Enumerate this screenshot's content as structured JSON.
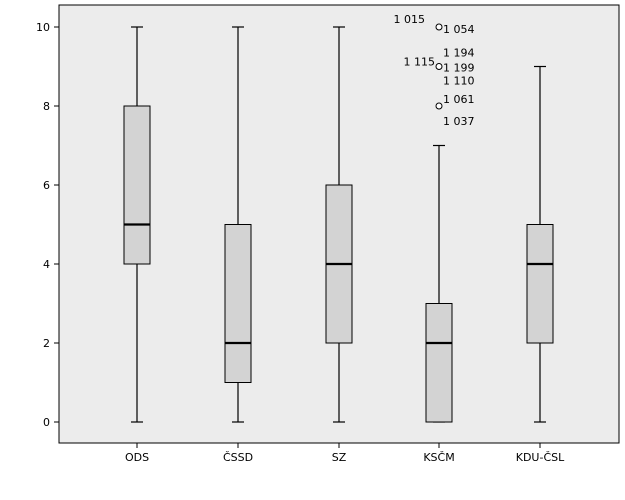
{
  "chart_data": {
    "type": "boxplot",
    "categories": [
      "ODS",
      "ČSSD",
      "SZ",
      "KSČM",
      "KDU-ČSL"
    ],
    "boxes": [
      {
        "category": "ODS",
        "min": 0,
        "q1": 4,
        "median": 5,
        "q3": 8,
        "max": 10,
        "outliers": []
      },
      {
        "category": "ČSSD",
        "min": 0,
        "q1": 1,
        "median": 2,
        "q3": 5,
        "max": 10,
        "outliers": []
      },
      {
        "category": "SZ",
        "min": 0,
        "q1": 2,
        "median": 4,
        "q3": 6,
        "max": 10,
        "outliers": []
      },
      {
        "category": "KSČM",
        "min": 0,
        "q1": 0,
        "median": 2,
        "q3": 3,
        "max": 7,
        "outliers": [
          {
            "value": 10,
            "labels": [
              "1 015",
              "1 054"
            ]
          },
          {
            "value": 9,
            "labels": [
              "1 194",
              "1 115",
              "1 199",
              "1 110"
            ]
          },
          {
            "value": 8,
            "labels": [
              "1 061",
              "1 037"
            ]
          }
        ]
      },
      {
        "category": "KDU-ČSL",
        "min": 0,
        "q1": 2,
        "median": 4,
        "q3": 5,
        "max": 9,
        "outliers": []
      }
    ],
    "yticks": [
      "0",
      "2",
      "4",
      "6",
      "8",
      "10"
    ],
    "ylim": [
      -0.55,
      10.55
    ],
    "grid": false,
    "colors": {
      "plot_bg": "#ececec",
      "box_fill": "#d3d3d3",
      "line": "#000000",
      "outlier_fill": "#ffffff"
    }
  }
}
